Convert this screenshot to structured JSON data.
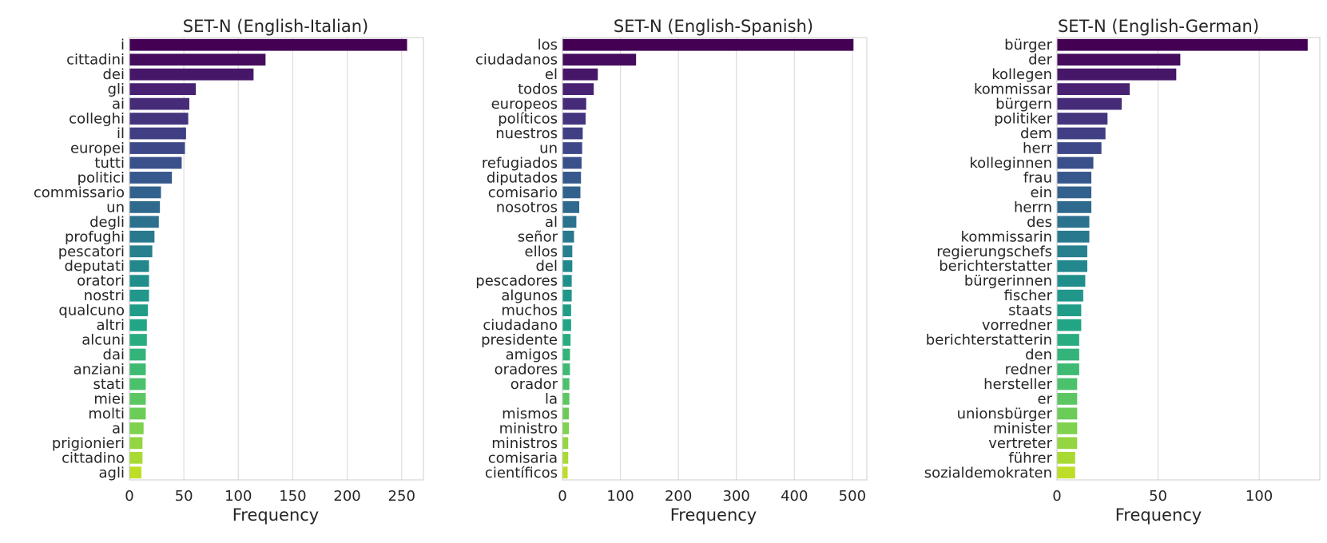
{
  "chart_data": [
    {
      "type": "bar",
      "orientation": "horizontal",
      "title": "SET-N (English-Italian)",
      "xlabel": "Frequency",
      "ylabel": "",
      "xlim": [
        0,
        270
      ],
      "xticks": [
        0,
        50,
        100,
        150,
        200,
        250
      ],
      "grid": "x",
      "categories": [
        "i",
        "cittadini",
        "dei",
        "gli",
        "ai",
        "colleghi",
        "il",
        "europei",
        "tutti",
        "politici",
        "commissario",
        "un",
        "degli",
        "profughi",
        "pescatori",
        "deputati",
        "oratori",
        "nostri",
        "qualcuno",
        "altri",
        "alcuni",
        "dai",
        "anziani",
        "stati",
        "miei",
        "molti",
        "al",
        "prigionieri",
        "cittadino",
        "agli"
      ],
      "values": [
        255,
        125,
        114,
        61,
        55,
        54,
        52,
        51,
        48,
        39,
        29,
        28,
        27,
        23,
        21,
        18,
        18,
        18,
        17,
        16,
        16,
        15,
        15,
        15,
        15,
        15,
        13,
        12,
        12,
        11
      ]
    },
    {
      "type": "bar",
      "orientation": "horizontal",
      "title": "SET-N (English-Spanish)",
      "xlabel": "Frequency",
      "ylabel": "",
      "xlim": [
        0,
        525
      ],
      "xticks": [
        0,
        100,
        200,
        300,
        400,
        500
      ],
      "grid": "x",
      "categories": [
        "los",
        "ciudadanos",
        "el",
        "todos",
        "europeos",
        "políticos",
        "nuestros",
        "un",
        "refugiados",
        "diputados",
        "comisario",
        "nosotros",
        "al",
        "señor",
        "ellos",
        "del",
        "pescadores",
        "algunos",
        "muchos",
        "ciudadano",
        "presidente",
        "amigos",
        "oradores",
        "orador",
        "la",
        "mismos",
        "ministro",
        "ministros",
        "comisaria",
        "científicos"
      ],
      "values": [
        502,
        127,
        61,
        54,
        41,
        40,
        35,
        34,
        33,
        32,
        31,
        29,
        24,
        20,
        17,
        17,
        16,
        16,
        15,
        15,
        14,
        13,
        13,
        12,
        12,
        11,
        11,
        10,
        10,
        9
      ]
    },
    {
      "type": "bar",
      "orientation": "horizontal",
      "title": "SET-N (English-German)",
      "xlabel": "Frequency",
      "ylabel": "",
      "xlim": [
        0,
        130
      ],
      "xticks": [
        0,
        50,
        100
      ],
      "grid": "x",
      "categories": [
        "bürger",
        "der",
        "kollegen",
        "kommissar",
        "bürgern",
        "politiker",
        "dem",
        "herr",
        "kolleginnen",
        "frau",
        "ein",
        "herrn",
        "des",
        "kommissarin",
        "regierungschefs",
        "berichterstatter",
        "bürgerinnen",
        "fischer",
        "staats",
        "vorredner",
        "berichterstatterin",
        "den",
        "redner",
        "hersteller",
        "er",
        "unionsbürger",
        "minister",
        "vertreter",
        "führer",
        "sozialdemokraten"
      ],
      "values": [
        124,
        61,
        59,
        36,
        32,
        25,
        24,
        22,
        18,
        17,
        17,
        17,
        16,
        16,
        15,
        15,
        14,
        13,
        12,
        12,
        11,
        11,
        11,
        10,
        10,
        10,
        10,
        10,
        9,
        9
      ]
    }
  ]
}
